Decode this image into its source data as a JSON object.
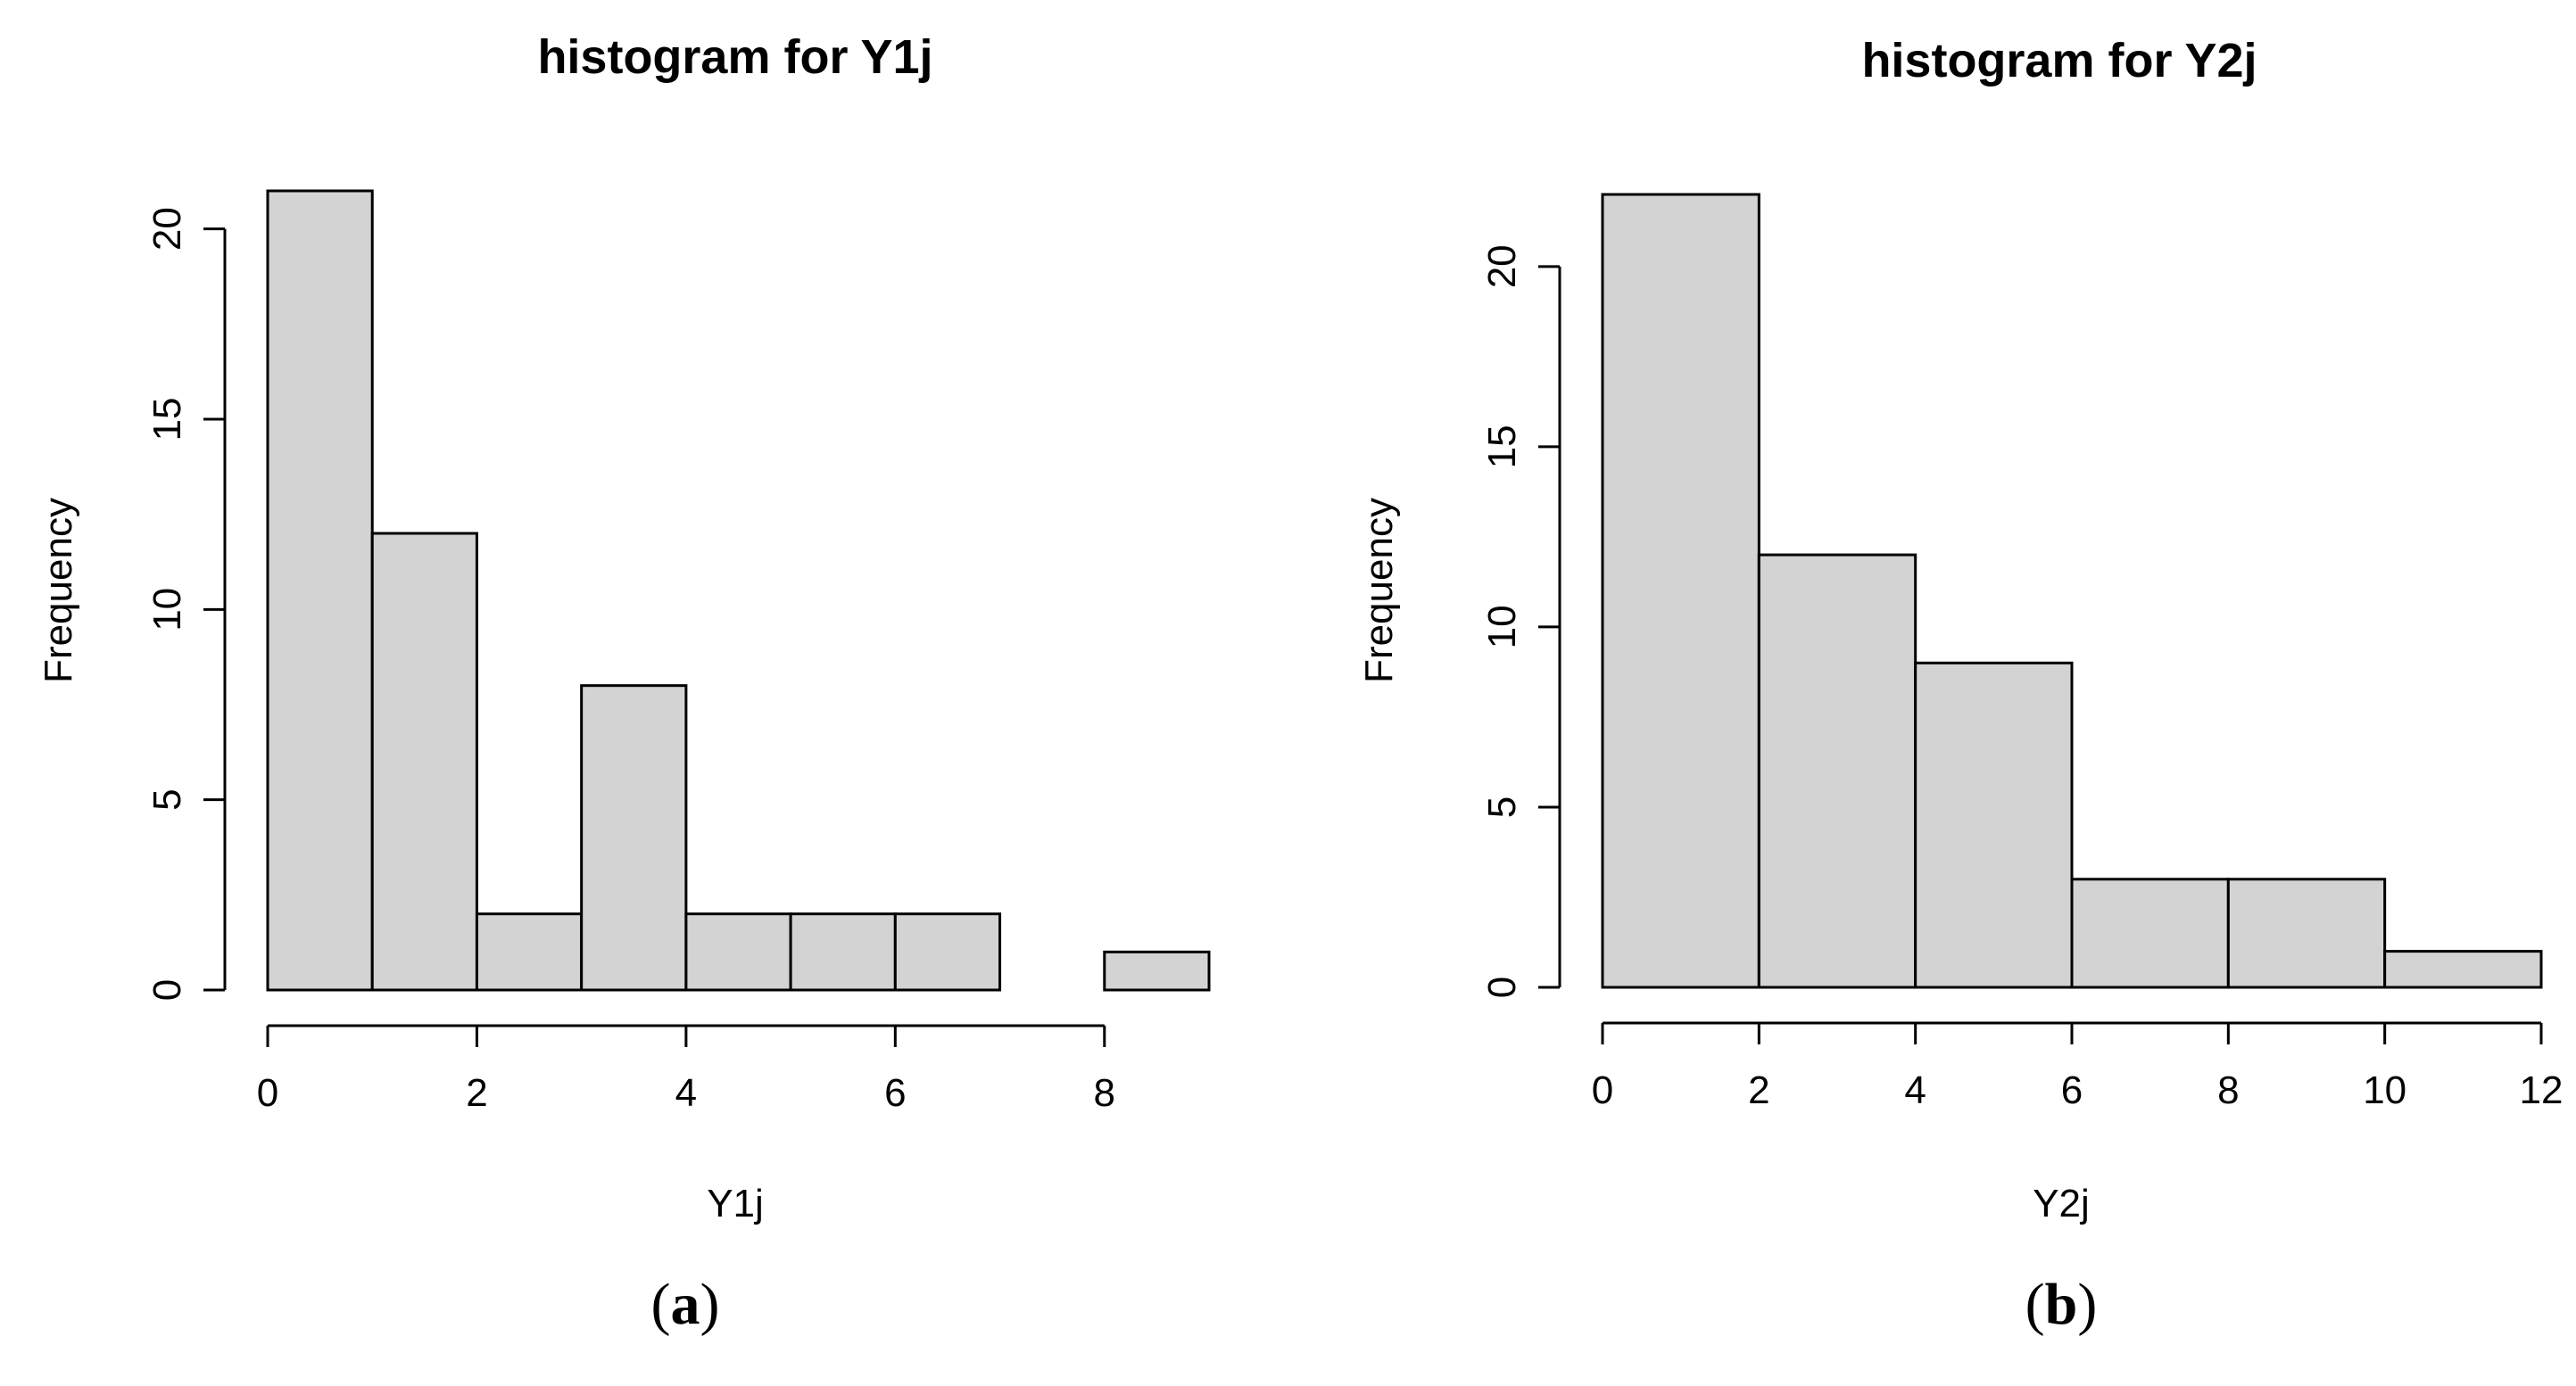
{
  "colors": {
    "bar_fill": "#d3d3d3",
    "bar_stroke": "#000000",
    "axis": "#000000"
  },
  "chart_data": [
    {
      "type": "bar",
      "title": "histogram for Y1j",
      "xlabel": "Y1j",
      "ylabel": "Frequency",
      "bins": [
        [
          0,
          1
        ],
        [
          1,
          2
        ],
        [
          2,
          3
        ],
        [
          3,
          4
        ],
        [
          4,
          5
        ],
        [
          5,
          6
        ],
        [
          6,
          7
        ],
        [
          7,
          8
        ],
        [
          8,
          9
        ]
      ],
      "values": [
        21,
        12,
        2,
        8,
        2,
        2,
        2,
        0,
        1
      ],
      "xlim": [
        0,
        9
      ],
      "ylim": [
        0,
        21
      ],
      "xticks": [
        0,
        2,
        4,
        6,
        8
      ],
      "yticks": [
        0,
        5,
        10,
        15,
        20
      ],
      "grid": false,
      "panel_label": {
        "open": "(",
        "letter": "a",
        "close": ")"
      }
    },
    {
      "type": "bar",
      "title": "histogram for Y2j",
      "xlabel": "Y2j",
      "ylabel": "Frequency",
      "bins": [
        [
          0,
          2
        ],
        [
          2,
          4
        ],
        [
          4,
          6
        ],
        [
          6,
          8
        ],
        [
          8,
          10
        ],
        [
          10,
          12
        ]
      ],
      "values": [
        22,
        12,
        9,
        3,
        3,
        1
      ],
      "xlim": [
        0,
        12
      ],
      "ylim": [
        0,
        22
      ],
      "xticks": [
        0,
        2,
        4,
        6,
        8,
        10,
        12
      ],
      "yticks": [
        0,
        5,
        10,
        15,
        20
      ],
      "grid": false,
      "panel_label": {
        "open": "(",
        "letter": "b",
        "close": ")"
      }
    }
  ]
}
